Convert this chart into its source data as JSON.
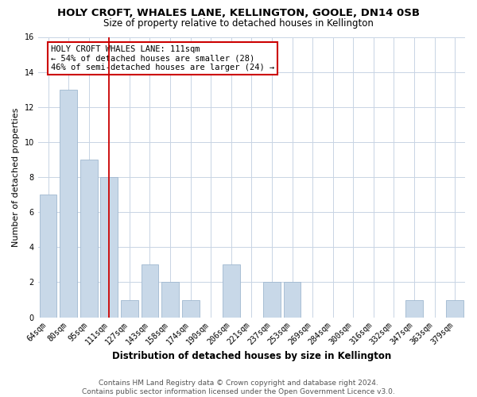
{
  "title": "HOLY CROFT, WHALES LANE, KELLINGTON, GOOLE, DN14 0SB",
  "subtitle": "Size of property relative to detached houses in Kellington",
  "xlabel": "Distribution of detached houses by size in Kellington",
  "ylabel": "Number of detached properties",
  "footer_line1": "Contains HM Land Registry data © Crown copyright and database right 2024.",
  "footer_line2": "Contains public sector information licensed under the Open Government Licence v3.0.",
  "bin_labels": [
    "64sqm",
    "80sqm",
    "95sqm",
    "111sqm",
    "127sqm",
    "143sqm",
    "158sqm",
    "174sqm",
    "190sqm",
    "206sqm",
    "221sqm",
    "237sqm",
    "253sqm",
    "269sqm",
    "284sqm",
    "300sqm",
    "316sqm",
    "332sqm",
    "347sqm",
    "363sqm",
    "379sqm"
  ],
  "bin_values": [
    7,
    13,
    9,
    8,
    1,
    3,
    2,
    1,
    0,
    3,
    0,
    2,
    2,
    0,
    0,
    0,
    0,
    0,
    1,
    0,
    1
  ],
  "bar_color": "#c8d8e8",
  "bar_edge_color": "#a0b8d0",
  "vline_x_index": 3,
  "vline_color": "#cc0000",
  "annotation_title": "HOLY CROFT WHALES LANE: 111sqm",
  "annotation_line1": "← 54% of detached houses are smaller (28)",
  "annotation_line2": "46% of semi-detached houses are larger (24) →",
  "annotation_box_edge": "#cc0000",
  "ylim": [
    0,
    16
  ],
  "yticks": [
    0,
    2,
    4,
    6,
    8,
    10,
    12,
    14,
    16
  ],
  "background_color": "#ffffff",
  "grid_color": "#c8d4e4",
  "title_fontsize": 9.5,
  "subtitle_fontsize": 8.5,
  "annotation_fontsize": 7.5,
  "axis_label_fontsize": 8,
  "tick_label_fontsize": 7,
  "footer_fontsize": 6.5,
  "xlabel_fontsize": 8.5
}
